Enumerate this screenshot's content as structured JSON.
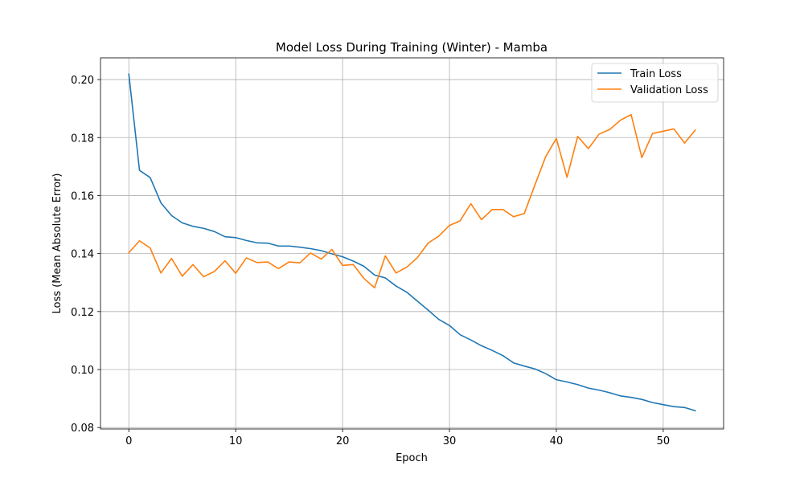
{
  "chart_data": {
    "type": "line",
    "title": "Model Loss During Training (Winter) - Mamba",
    "xlabel": "Epoch",
    "ylabel": "Loss (Mean Absolute Error)",
    "xlim": [
      -2.65,
      55.65
    ],
    "ylim": [
      0.0795,
      0.2075
    ],
    "xticks": [
      0,
      10,
      20,
      30,
      40,
      50
    ],
    "yticks": [
      0.08,
      0.1,
      0.12,
      0.14,
      0.16,
      0.18,
      0.2
    ],
    "ytick_labels": [
      "0.08",
      "0.10",
      "0.12",
      "0.14",
      "0.16",
      "0.18",
      "0.20"
    ],
    "grid": true,
    "legend_position": "upper-right",
    "series": [
      {
        "name": "Train Loss",
        "color": "#1f77b4",
        "values": [
          0.2019,
          0.1687,
          0.1662,
          0.1575,
          0.1531,
          0.1506,
          0.1494,
          0.1487,
          0.1476,
          0.1458,
          0.1455,
          0.1445,
          0.1437,
          0.1436,
          0.1426,
          0.1426,
          0.1422,
          0.1417,
          0.141,
          0.1399,
          0.1389,
          0.1374,
          0.1356,
          0.1326,
          0.1316,
          0.1288,
          0.1267,
          0.1236,
          0.1205,
          0.1173,
          0.1152,
          0.112,
          0.1102,
          0.1082,
          0.1066,
          0.1048,
          0.1023,
          0.1012,
          0.1002,
          0.0986,
          0.0965,
          0.0957,
          0.0948,
          0.0936,
          0.0929,
          0.092,
          0.0909,
          0.0904,
          0.0897,
          0.0886,
          0.0879,
          0.0872,
          0.0869,
          0.0858
        ]
      },
      {
        "name": "Validation Loss",
        "color": "#ff7f0e",
        "values": [
          0.1403,
          0.1444,
          0.1419,
          0.1333,
          0.1383,
          0.1322,
          0.1362,
          0.132,
          0.1338,
          0.1375,
          0.1332,
          0.1385,
          0.1369,
          0.1371,
          0.1348,
          0.1371,
          0.1368,
          0.1402,
          0.1381,
          0.1414,
          0.1359,
          0.1362,
          0.1314,
          0.1282,
          0.1392,
          0.1333,
          0.1353,
          0.1386,
          0.1436,
          0.146,
          0.1497,
          0.1513,
          0.1572,
          0.1517,
          0.1552,
          0.1552,
          0.1527,
          0.1538,
          0.1637,
          0.1734,
          0.1797,
          0.1663,
          0.1804,
          0.1762,
          0.1812,
          0.1828,
          0.186,
          0.1879,
          0.1731,
          0.1814,
          0.1822,
          0.183,
          0.1781,
          0.1826
        ]
      }
    ]
  }
}
